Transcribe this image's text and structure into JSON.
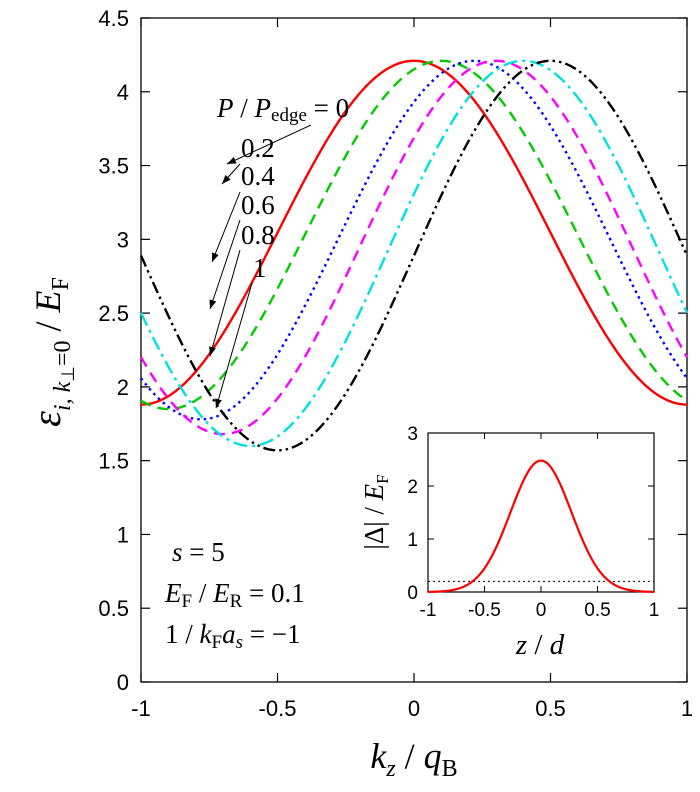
{
  "chart_data": [
    {
      "type": "line",
      "xlabel": "k_z / q_B",
      "ylabel": "ε_{i, k⊥=0} / E_F",
      "xlim": [
        -1,
        1
      ],
      "ylim": [
        0,
        4.5
      ],
      "x_ticks": [
        "-1",
        "-0.5",
        "0",
        "0.5",
        "1"
      ],
      "y_ticks": [
        "0",
        "0.5",
        "1",
        "1.5",
        "2",
        "2.5",
        "3",
        "3.5",
        "4",
        "4.5"
      ],
      "grid": false,
      "legend": {
        "title": "P/P_edge =",
        "placement": "top-center",
        "entries": [
          "0",
          "0.2",
          "0.4",
          "0.6",
          "0.8",
          "1"
        ]
      },
      "annotation_lines": [
        "s = 5",
        "E_F / E_R = 0.1",
        "1/k_F a_s = −1"
      ],
      "model": "ε(k) = center + amplitude · cos(π (k − shift)), approx. shape read from plot",
      "series": [
        {
          "name": "0",
          "color": "#ff0000",
          "style": "solid",
          "shift": 0.0,
          "min": 1.88,
          "max": 4.21
        },
        {
          "name": "0.2",
          "color": "#00cc00",
          "style": "dash",
          "shift": 0.1,
          "min": 1.85,
          "max": 4.21
        },
        {
          "name": "0.4",
          "color": "#0000ff",
          "style": "dot",
          "shift": 0.22,
          "min": 1.78,
          "max": 4.21
        },
        {
          "name": "0.6",
          "color": "#ff00ff",
          "style": "dash",
          "shift": 0.3,
          "min": 1.68,
          "max": 4.21
        },
        {
          "name": "0.8",
          "color": "#00e0e0",
          "style": "dash-dot",
          "shift": 0.4,
          "min": 1.6,
          "max": 4.21
        },
        {
          "name": "1",
          "color": "#000000",
          "style": "dash-dot-dot",
          "shift": 0.5,
          "min": 1.57,
          "max": 4.21
        }
      ],
      "sample_points": {
        "P/P_edge = 0": {
          "x": [
            -1,
            -0.5,
            0,
            0.5,
            1
          ],
          "y": [
            4.21,
            3.05,
            1.88,
            3.05,
            4.21
          ]
        },
        "P/P_edge = 1": {
          "x": [
            -1,
            -0.5,
            0,
            0.5,
            1
          ],
          "y": [
            2.89,
            1.57,
            2.89,
            4.21,
            2.89
          ]
        }
      }
    },
    {
      "type": "line",
      "xlabel": "z / d",
      "ylabel": "|Δ| / E_F",
      "xlim": [
        -1,
        1
      ],
      "ylim": [
        0,
        3
      ],
      "x_ticks": [
        "-1",
        "-0.5",
        "0",
        "0.5",
        "1"
      ],
      "y_ticks": [
        "0",
        "1",
        "2",
        "3"
      ],
      "series": [
        {
          "name": "|Δ|",
          "color": "#ff0000",
          "style": "solid",
          "peak": 2.48,
          "peak_x": 0.0,
          "width_sigma": 0.27,
          "tail": 0.0
        }
      ],
      "reference_line": {
        "y": 0.2,
        "style": "dotted",
        "color": "#000000"
      },
      "sample_points": {
        "x": [
          -1,
          -0.5,
          0,
          0.5,
          1
        ],
        "y": [
          0.0,
          0.46,
          2.48,
          0.46,
          0.0
        ]
      }
    }
  ]
}
